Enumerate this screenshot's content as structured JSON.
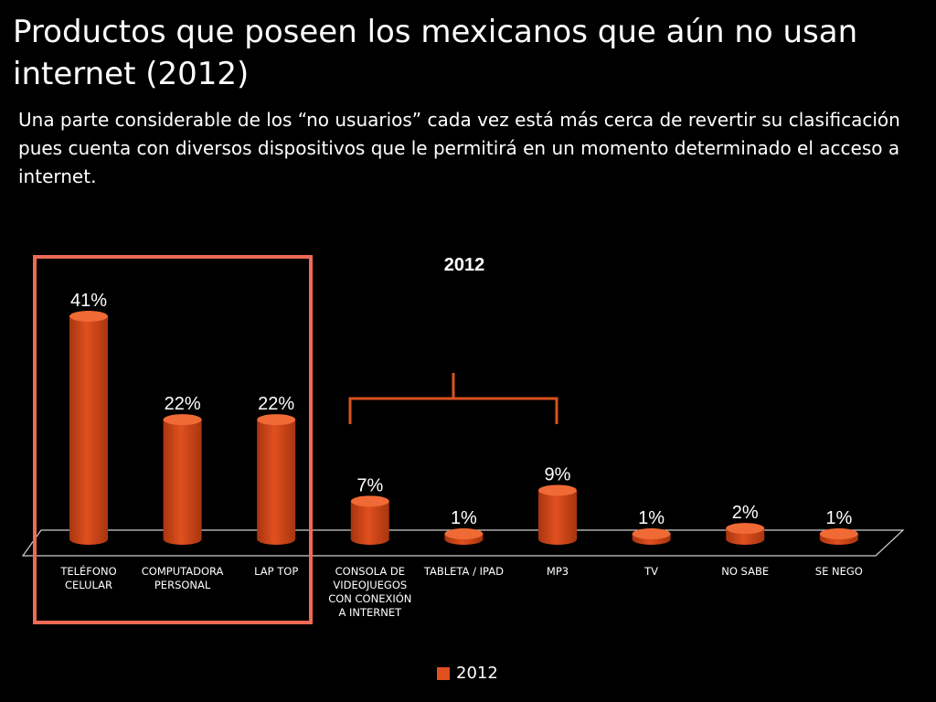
{
  "slide": {
    "title": "Productos que poseen los mexicanos que aún no usan internet (2012)",
    "subtitle": "Una parte considerable de los “no usuarios” cada vez está más cerca de revertir su clasificación pues cuenta con diversos dispositivos que le permitirá en un momento determinado el acceso a internet."
  },
  "colors": {
    "bar": "#e0501f",
    "bar_top": "#f06a35",
    "bar_shade": "#a8350f",
    "highlight": "#ee6a55",
    "bracket": "#d8521f"
  },
  "chart_data": {
    "type": "bar",
    "title": "2012",
    "categories": [
      "TELÉFONO CELULAR",
      "COMPUTADORA PERSONAL",
      "LAP TOP",
      "CONSOLA DE VIDEOJUEGOS CON CONEXIÓN A INTERNET",
      "TABLETA / IPAD",
      "MP3",
      "TV",
      "NO SABE",
      "SE NEGO"
    ],
    "category_lines": [
      [
        "TELÉFONO",
        "CELULAR"
      ],
      [
        "COMPUTADORA",
        "PERSONAL"
      ],
      [
        "LAP TOP"
      ],
      [
        "CONSOLA DE",
        "VIDEOJUEGOS",
        "CON CONEXIÓN",
        "A INTERNET"
      ],
      [
        "TABLETA / IPAD"
      ],
      [
        "MP3"
      ],
      [
        "TV"
      ],
      [
        "NO SABE"
      ],
      [
        "SE NEGO"
      ]
    ],
    "series": [
      {
        "name": "2012",
        "values": [
          41,
          22,
          22,
          7,
          1,
          9,
          1,
          2,
          1
        ]
      }
    ],
    "data_labels": [
      "41%",
      "22%",
      "22%",
      "7%",
      "1%",
      "9%",
      "1%",
      "2%",
      "1%"
    ],
    "legend": {
      "position": "bottom",
      "label": "2012"
    },
    "ylim": [
      0,
      45
    ],
    "grid": false,
    "annotations": {
      "highlight_box": "TELÉFONO CELULAR, COMPUTADORA PERSONAL, LAP TOP",
      "bracket": "CONSOLA DE VIDEOJUEGOS CON CONEXIÓN A INTERNET, MP3"
    }
  }
}
